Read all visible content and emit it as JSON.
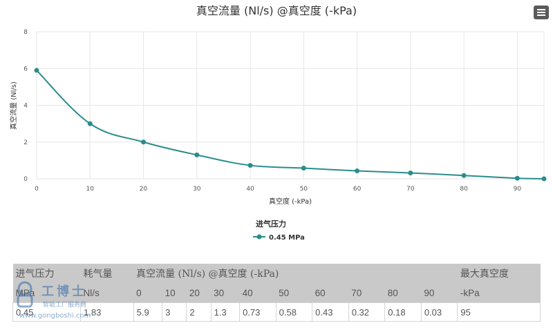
{
  "chart_data": {
    "type": "line",
    "title": "真空流量 (Nl/s) @真空度 (-kPa)",
    "xlabel": "真空度 (-kPa)",
    "ylabel": "真空流量 (Nl/s)",
    "xlim": [
      0,
      95
    ],
    "ylim": [
      0,
      8
    ],
    "x_ticks": [
      0,
      10,
      20,
      30,
      40,
      50,
      60,
      70,
      80,
      90
    ],
    "y_ticks": [
      0,
      2,
      4,
      6,
      8
    ],
    "grid": true,
    "legend_title": "进气压力",
    "legend_position": "bottom",
    "series": [
      {
        "name": "0.45 MPa",
        "color": "#2a8c8c",
        "x": [
          0,
          10,
          20,
          30,
          40,
          50,
          60,
          70,
          80,
          90,
          95
        ],
        "y": [
          5.9,
          3,
          2,
          1.3,
          0.73,
          0.58,
          0.43,
          0.32,
          0.18,
          0.03,
          0
        ]
      }
    ]
  },
  "menu": {
    "icon": "hamburger-menu-icon"
  },
  "table": {
    "header1": [
      "进气压力",
      "耗气量",
      "真空流量 (Nl/s) @真空度 (-kPa)",
      "最大真空度"
    ],
    "header2": [
      "MPa",
      "Nl/s",
      "0",
      "10",
      "20",
      "30",
      "40",
      "50",
      "60",
      "70",
      "80",
      "90",
      "-kPa"
    ],
    "rows": [
      [
        "0.45",
        "1.83",
        "5.9",
        "3",
        "2",
        "1.3",
        "0.73",
        "0.58",
        "0.43",
        "0.32",
        "0.18",
        "0.03",
        "95"
      ]
    ]
  },
  "watermark": {
    "brand": "工博士",
    "tagline": "智能工厂服务商",
    "url": "www.gongboshi.com"
  }
}
